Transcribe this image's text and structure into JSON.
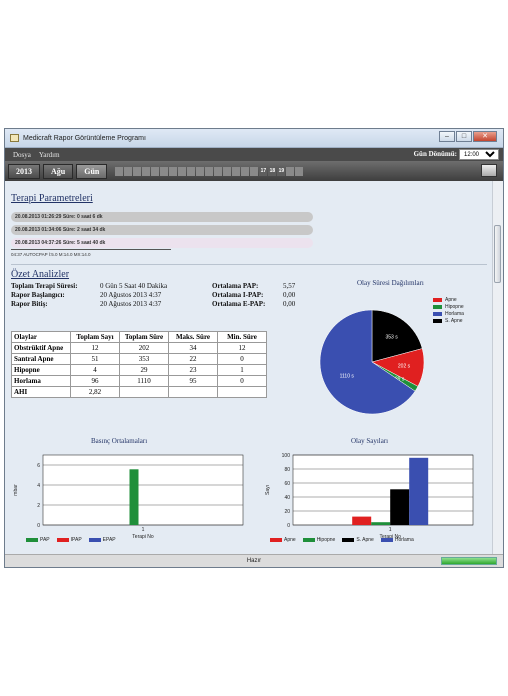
{
  "app": {
    "title": "Medicraft Rapor Görüntüleme Programı"
  },
  "menu": {
    "items": [
      "Dosya",
      "Yardım"
    ],
    "period_label": "Gün Dönümü:",
    "period_value": "12:00"
  },
  "toolbar": {
    "year": "2013",
    "month": "Ağu",
    "view": "Gün",
    "days_on": [
      "17",
      "18",
      "19"
    ]
  },
  "params": {
    "title": "Terapi Parametreleri",
    "sessions": [
      "20.08.2013 01:26:29  Süre: 0 saat 6 dk",
      "20.08.2013 01:34:06  Süre: 2 saat 34 dk",
      "20.08.2013 04:37:26  Süre: 5 saat 40 dk"
    ],
    "detail": "04:37  AUTOCPAP  İ:5.0  M:14.0  MX:14.0"
  },
  "summary": {
    "title": "Özet Analizler",
    "rows": [
      {
        "label": "Toplam Terapi Süresi:",
        "value": "0 Gün 5 Saat 40 Dakika"
      },
      {
        "label": "Rapor Başlangıcı:",
        "value": "20 Ağustos 2013 4:37"
      },
      {
        "label": "Rapor Bitiş:",
        "value": "20 Ağustos 2013 4:37"
      }
    ],
    "pressures": [
      {
        "label": "Ortalama PAP:",
        "value": "5,57"
      },
      {
        "label": "Ortalama I-PAP:",
        "value": "0,00"
      },
      {
        "label": "Ortalama E-PAP:",
        "value": "0,00"
      }
    ]
  },
  "table": {
    "headers": [
      "Olaylar",
      "Toplam Sayı",
      "Toplam Süre",
      "Maks. Süre",
      "Min. Süre"
    ],
    "rows": [
      [
        "Obstrüktif Apne",
        "12",
        "202",
        "34",
        "12"
      ],
      [
        "Santral Apne",
        "51",
        "353",
        "22",
        "0"
      ],
      [
        "Hipopne",
        "4",
        "29",
        "23",
        "1"
      ],
      [
        "Horlama",
        "96",
        "1110",
        "95",
        "0"
      ],
      [
        "AHI",
        "2,82",
        "",
        "",
        ""
      ]
    ]
  },
  "colors": {
    "red": "#e02020",
    "green": "#1f8f3a",
    "black": "#000000",
    "blue": "#3a4fb0"
  },
  "chart_data": [
    {
      "type": "pie",
      "title": "Olay Süresi Dağılımları",
      "labels": [
        "Apne",
        "Hipopne",
        "Horlama",
        "S. Apne"
      ],
      "values": [
        202,
        29,
        1110,
        353
      ],
      "slice_labels": [
        "202 s",
        "29 s",
        "1110 s",
        "353 s"
      ],
      "colors": [
        "#e02020",
        "#1f8f3a",
        "#3a4fb0",
        "#000000"
      ],
      "legend": "top-right"
    },
    {
      "type": "bar",
      "title": "Basınç Ortalamaları",
      "categories": [
        "1"
      ],
      "series": [
        {
          "name": "PAP",
          "values": [
            5.57
          ],
          "color": "#1f8f3a"
        },
        {
          "name": "IPAP",
          "values": [
            0
          ],
          "color": "#e02020"
        },
        {
          "name": "EPAP",
          "values": [
            0
          ],
          "color": "#3a4fb0"
        }
      ],
      "xlabel": "Terapi No",
      "ylabel": "mbar",
      "yticks": [
        "0",
        "2",
        "4",
        "6"
      ],
      "ylim": [
        0,
        7
      ],
      "grid": true,
      "legend": "bottom"
    },
    {
      "type": "bar",
      "title": "Olay Sayıları",
      "categories": [
        "1"
      ],
      "series": [
        {
          "name": "Apne",
          "values": [
            12
          ],
          "color": "#e02020"
        },
        {
          "name": "Hipopne",
          "values": [
            4
          ],
          "color": "#1f8f3a"
        },
        {
          "name": "S. Apne",
          "values": [
            51
          ],
          "color": "#000000"
        },
        {
          "name": "Horlama",
          "values": [
            96
          ],
          "color": "#3a4fb0"
        }
      ],
      "xlabel": "Terapi No",
      "ylabel": "Sayı",
      "yticks": [
        "0",
        "20",
        "40",
        "60",
        "80",
        "100"
      ],
      "ylim": [
        0,
        100
      ],
      "grid": true,
      "legend": "bottom"
    }
  ],
  "status": {
    "text": "Hazır"
  }
}
